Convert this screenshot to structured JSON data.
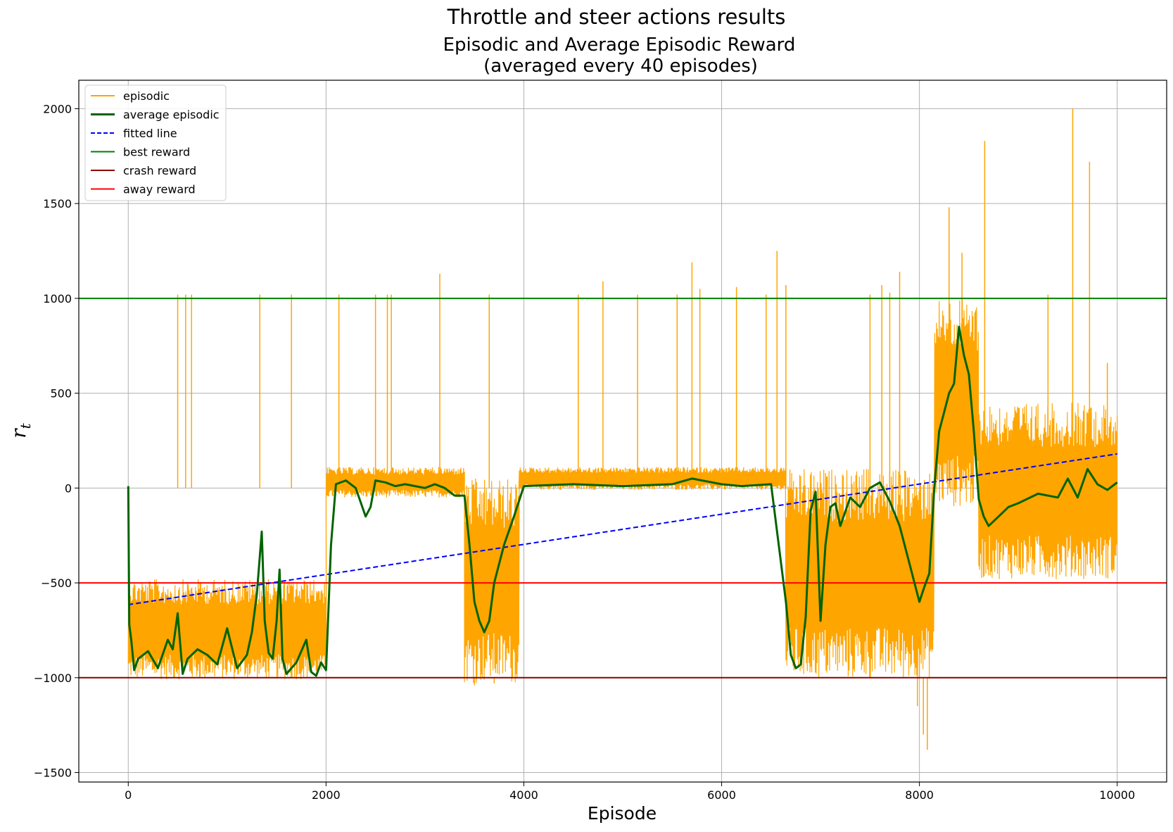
{
  "chart_data": {
    "type": "line",
    "suptitle": "Throttle and steer actions results",
    "title_line1": "Episodic and Average Episodic Reward",
    "title_line2": "(averaged every 40 episodes)",
    "xlabel": "Episode",
    "ylabel_main": "r",
    "ylabel_sub": "t",
    "xlim": [
      -500,
      10500
    ],
    "ylim": [
      -1550,
      2150
    ],
    "xticks": [
      0,
      2000,
      4000,
      6000,
      8000,
      10000
    ],
    "xtick_labels": [
      "0",
      "2000",
      "4000",
      "6000",
      "8000",
      "10000"
    ],
    "yticks": [
      -1500,
      -1000,
      -500,
      0,
      500,
      1000,
      1500,
      2000
    ],
    "ytick_labels": [
      "−1500",
      "−1000",
      "−500",
      "0",
      "500",
      "1000",
      "1500",
      "2000"
    ],
    "grid": true,
    "legend_position": "upper-left",
    "legend": [
      {
        "key": "episodic",
        "label": "episodic",
        "color": "#ffa500",
        "style": "solid"
      },
      {
        "key": "average",
        "label": "average episodic",
        "color": "#006400",
        "style": "solid"
      },
      {
        "key": "fitted",
        "label": "fitted line",
        "color": "#0000ff",
        "style": "dashed"
      },
      {
        "key": "best",
        "label": "best reward",
        "color": "#008000",
        "style": "solid"
      },
      {
        "key": "crash",
        "label": "crash reward",
        "color": "#8b0000",
        "style": "solid"
      },
      {
        "key": "away",
        "label": "away reward",
        "color": "#ff0000",
        "style": "solid"
      }
    ],
    "hlines": [
      {
        "key": "best",
        "y": 1000,
        "color": "#008000"
      },
      {
        "key": "away",
        "y": -500,
        "color": "#ff0000"
      },
      {
        "key": "crash",
        "y": -1000,
        "color": "#8b0000"
      }
    ],
    "fitted_line": {
      "x": [
        0,
        10000
      ],
      "y": [
        -615,
        180
      ],
      "color": "#0000ff"
    },
    "episodic_bands": {
      "color": "#ffa500",
      "segments": [
        {
          "x0": 0,
          "x1": 2000,
          "low": -1010,
          "high": -480
        },
        {
          "x0": 2000,
          "x1": 3400,
          "low": -50,
          "high": 110
        },
        {
          "x0": 3400,
          "x1": 3950,
          "low": -1030,
          "high": 50
        },
        {
          "x0": 3950,
          "x1": 6650,
          "low": -10,
          "high": 110
        },
        {
          "x0": 6650,
          "x1": 8150,
          "low": -1010,
          "high": 100
        },
        {
          "x0": 8150,
          "x1": 8600,
          "low": -100,
          "high": 1000
        },
        {
          "x0": 8600,
          "x1": 10000,
          "low": -480,
          "high": 450
        }
      ]
    },
    "episodic_spikes": [
      {
        "x": 500,
        "y": 1020
      },
      {
        "x": 580,
        "y": 1020
      },
      {
        "x": 640,
        "y": 1020
      },
      {
        "x": 1330,
        "y": 1020
      },
      {
        "x": 1650,
        "y": 1020
      },
      {
        "x": 2130,
        "y": 1020
      },
      {
        "x": 2500,
        "y": 1020
      },
      {
        "x": 2620,
        "y": 1020
      },
      {
        "x": 2660,
        "y": 1020
      },
      {
        "x": 3150,
        "y": 1130
      },
      {
        "x": 3650,
        "y": 1020
      },
      {
        "x": 4550,
        "y": 1020
      },
      {
        "x": 4800,
        "y": 1090
      },
      {
        "x": 5150,
        "y": 1020
      },
      {
        "x": 5550,
        "y": 1020
      },
      {
        "x": 5700,
        "y": 1190
      },
      {
        "x": 5780,
        "y": 1050
      },
      {
        "x": 6150,
        "y": 1060
      },
      {
        "x": 6450,
        "y": 1020
      },
      {
        "x": 6560,
        "y": 1250
      },
      {
        "x": 6650,
        "y": 1070
      },
      {
        "x": 7500,
        "y": 1020
      },
      {
        "x": 7620,
        "y": 1070
      },
      {
        "x": 7700,
        "y": 1030
      },
      {
        "x": 7800,
        "y": 1140
      },
      {
        "x": 8300,
        "y": 1480
      },
      {
        "x": 8430,
        "y": 1240
      },
      {
        "x": 8660,
        "y": 1830
      },
      {
        "x": 9300,
        "y": 1020
      },
      {
        "x": 9550,
        "y": 2000
      },
      {
        "x": 9720,
        "y": 1720
      },
      {
        "x": 9900,
        "y": 660
      },
      {
        "x": 8080,
        "y": -1380
      },
      {
        "x": 8040,
        "y": -1300
      },
      {
        "x": 7980,
        "y": -1150
      },
      {
        "x": 3500,
        "y": -1040
      },
      {
        "x": 3700,
        "y": -1030
      }
    ],
    "average": {
      "color": "#006400",
      "x": [
        0,
        10,
        30,
        60,
        100,
        200,
        300,
        400,
        450,
        500,
        550,
        600,
        700,
        800,
        900,
        1000,
        1100,
        1200,
        1250,
        1300,
        1350,
        1380,
        1420,
        1460,
        1500,
        1530,
        1560,
        1600,
        1700,
        1800,
        1850,
        1900,
        1950,
        2000,
        2050,
        2100,
        2200,
        2300,
        2400,
        2450,
        2500,
        2600,
        2700,
        2800,
        2900,
        3000,
        3100,
        3200,
        3300,
        3400,
        3450,
        3500,
        3550,
        3600,
        3650,
        3700,
        3800,
        3900,
        4000,
        4500,
        5000,
        5500,
        5700,
        6000,
        6200,
        6500,
        6650,
        6700,
        6750,
        6800,
        6850,
        6900,
        6950,
        7000,
        7050,
        7100,
        7150,
        7200,
        7300,
        7400,
        7500,
        7600,
        7700,
        7800,
        7900,
        8000,
        8050,
        8100,
        8150,
        8200,
        8300,
        8350,
        8400,
        8450,
        8500,
        8550,
        8600,
        8650,
        8700,
        8800,
        8900,
        9000,
        9200,
        9400,
        9500,
        9600,
        9700,
        9800,
        9900,
        10000
      ],
      "y": [
        10,
        -720,
        -800,
        -960,
        -900,
        -860,
        -950,
        -800,
        -850,
        -660,
        -980,
        -900,
        -850,
        -880,
        -930,
        -740,
        -950,
        -880,
        -760,
        -560,
        -230,
        -700,
        -870,
        -900,
        -700,
        -430,
        -900,
        -980,
        -920,
        -800,
        -970,
        -990,
        -920,
        -960,
        -300,
        20,
        40,
        0,
        -150,
        -100,
        40,
        30,
        10,
        20,
        10,
        0,
        20,
        0,
        -40,
        -40,
        -300,
        -600,
        -700,
        -760,
        -700,
        -500,
        -300,
        -150,
        10,
        20,
        10,
        20,
        50,
        20,
        10,
        20,
        -600,
        -880,
        -950,
        -930,
        -680,
        -120,
        -20,
        -700,
        -300,
        -100,
        -80,
        -200,
        -50,
        -100,
        0,
        30,
        -70,
        -200,
        -400,
        -600,
        -520,
        -450,
        0,
        300,
        500,
        550,
        850,
        700,
        600,
        300,
        -60,
        -150,
        -200,
        -150,
        -100,
        -80,
        -30,
        -50,
        50,
        -50,
        100,
        20,
        -10,
        30
      ]
    }
  }
}
